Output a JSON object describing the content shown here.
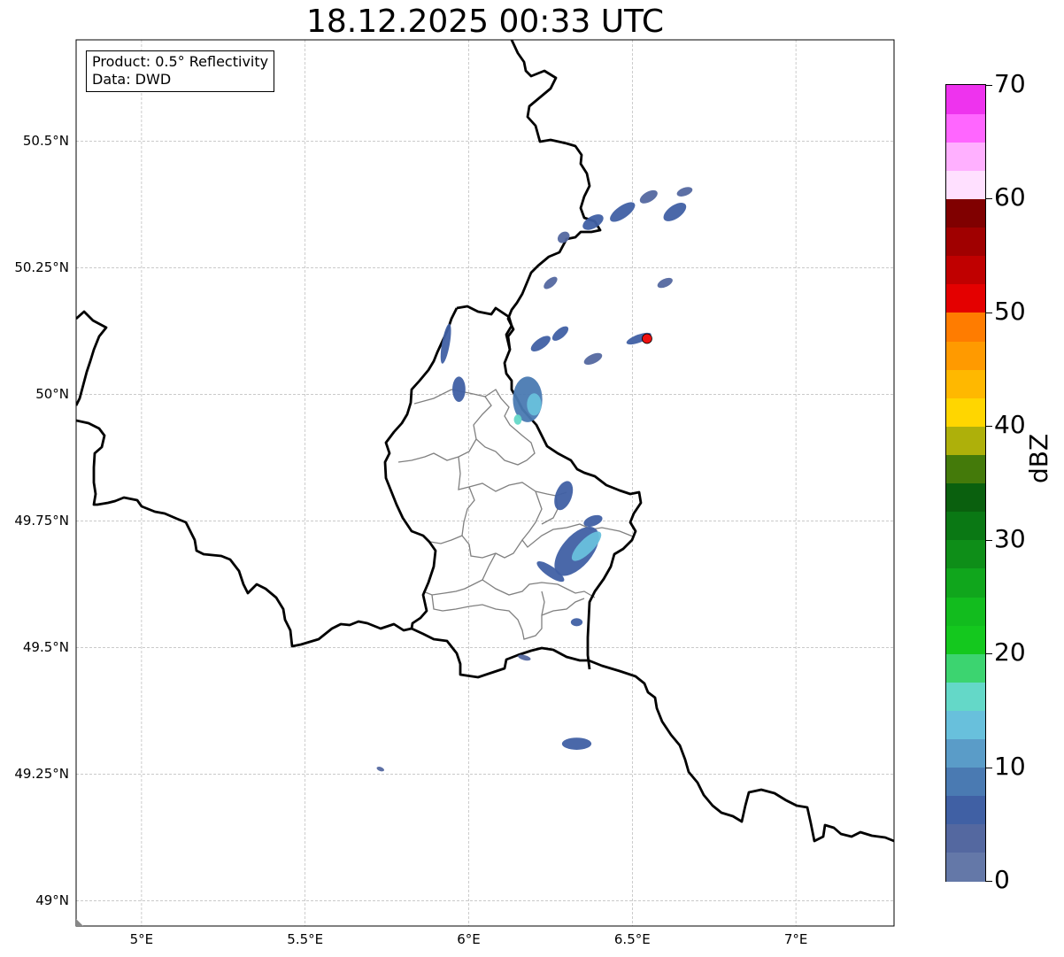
{
  "title": "18.12.2025 00:33 UTC",
  "info_box": {
    "product": "Product: 0.5° Reflectivity",
    "data_source": "Data: DWD"
  },
  "map_extent": {
    "lon": [
      4.8,
      7.3
    ],
    "lat": [
      48.95,
      50.7
    ]
  },
  "lat_ticks": [
    {
      "value": 50.5,
      "label": "50.5°N"
    },
    {
      "value": 50.25,
      "label": "50.25°N"
    },
    {
      "value": 50.0,
      "label": "50°N"
    },
    {
      "value": 49.75,
      "label": "49.75°N"
    },
    {
      "value": 49.5,
      "label": "49.5°N"
    },
    {
      "value": 49.25,
      "label": "49.25°N"
    },
    {
      "value": 49.0,
      "label": "49°N"
    }
  ],
  "lon_ticks": [
    {
      "value": 5.0,
      "label": "5°E"
    },
    {
      "value": 5.5,
      "label": "5.5°E"
    },
    {
      "value": 6.0,
      "label": "6°E"
    },
    {
      "value": 6.5,
      "label": "6.5°E"
    },
    {
      "value": 7.0,
      "label": "7°E"
    }
  ],
  "marker": {
    "lon": 6.545,
    "lat": 50.11,
    "color": "#ee1111"
  },
  "colorbar": {
    "label": "dBZ",
    "min": 0,
    "max": 70,
    "ticks": [
      "0",
      "10",
      "20",
      "30",
      "40",
      "50",
      "60",
      "70"
    ],
    "colors": [
      "#6478a8",
      "#5468a0",
      "#4060a4",
      "#4a7ab2",
      "#5a9cc8",
      "#68c0dc",
      "#64d8c8",
      "#3cd470",
      "#14c81e",
      "#12bc1e",
      "#10a61c",
      "#0e8e18",
      "#0a7814",
      "#0a600e",
      "#447a0a",
      "#aeb00a",
      "#ffd600",
      "#ffb800",
      "#ff9a00",
      "#ff7c00",
      "#e40000",
      "#c00000",
      "#a00000",
      "#800000",
      "#ffe0ff",
      "#ffb0ff",
      "#ff66ff",
      "#ee33ee"
    ]
  },
  "radar_echoes": [
    {
      "name": "echo-north-1",
      "lon": 6.38,
      "lat": 50.34,
      "rx": 0.035,
      "ry": 0.012,
      "rot": -30,
      "dbz": 6
    },
    {
      "name": "echo-north-2",
      "lon": 6.47,
      "lat": 50.36,
      "rx": 0.045,
      "ry": 0.012,
      "rot": -35,
      "dbz": 5
    },
    {
      "name": "echo-north-3",
      "lon": 6.55,
      "lat": 50.39,
      "rx": 0.03,
      "ry": 0.01,
      "rot": -30,
      "dbz": 4
    },
    {
      "name": "echo-north-4",
      "lon": 6.63,
      "lat": 50.36,
      "rx": 0.04,
      "ry": 0.013,
      "rot": -35,
      "dbz": 6
    },
    {
      "name": "echo-north-5",
      "lon": 6.66,
      "lat": 50.4,
      "rx": 0.025,
      "ry": 0.008,
      "rot": -20,
      "dbz": 4
    },
    {
      "name": "echo-north-6",
      "lon": 6.29,
      "lat": 50.31,
      "rx": 0.02,
      "ry": 0.01,
      "rot": -40,
      "dbz": 4
    },
    {
      "name": "echo-center-1",
      "lon": 6.25,
      "lat": 50.22,
      "rx": 0.025,
      "ry": 0.008,
      "rot": -40,
      "dbz": 4
    },
    {
      "name": "echo-center-2",
      "lon": 6.22,
      "lat": 50.1,
      "rx": 0.035,
      "ry": 0.01,
      "rot": -35,
      "dbz": 6
    },
    {
      "name": "echo-center-3",
      "lon": 6.28,
      "lat": 50.12,
      "rx": 0.03,
      "ry": 0.009,
      "rot": -40,
      "dbz": 5
    },
    {
      "name": "echo-east-1",
      "lon": 6.38,
      "lat": 50.07,
      "rx": 0.03,
      "ry": 0.009,
      "rot": -25,
      "dbz": 4
    },
    {
      "name": "echo-east-2",
      "lon": 6.52,
      "lat": 50.11,
      "rx": 0.04,
      "ry": 0.008,
      "rot": -20,
      "dbz": 5
    },
    {
      "name": "echo-east-3",
      "lon": 6.6,
      "lat": 50.22,
      "rx": 0.025,
      "ry": 0.008,
      "rot": -25,
      "dbz": 4
    },
    {
      "name": "echo-cell-1",
      "lon": 6.18,
      "lat": 49.99,
      "rx": 0.045,
      "ry": 0.045,
      "rot": 0,
      "dbz": 8
    },
    {
      "name": "echo-cell-2",
      "lon": 6.2,
      "lat": 49.98,
      "rx": 0.022,
      "ry": 0.022,
      "rot": 0,
      "dbz": 14
    },
    {
      "name": "echo-cell-3",
      "lon": 6.15,
      "lat": 49.95,
      "rx": 0.012,
      "ry": 0.01,
      "rot": 0,
      "dbz": 16
    },
    {
      "name": "echo-west-1",
      "lon": 5.93,
      "lat": 50.1,
      "rx": 0.012,
      "ry": 0.04,
      "rot": 10,
      "dbz": 5
    },
    {
      "name": "echo-west-2",
      "lon": 5.97,
      "lat": 50.01,
      "rx": 0.02,
      "ry": 0.025,
      "rot": 0,
      "dbz": 6
    },
    {
      "name": "echo-south-1",
      "lon": 6.29,
      "lat": 49.8,
      "rx": 0.025,
      "ry": 0.03,
      "rot": 20,
      "dbz": 5
    },
    {
      "name": "echo-south-2",
      "lon": 6.33,
      "lat": 49.69,
      "rx": 0.09,
      "ry": 0.03,
      "rot": -50,
      "dbz": 7
    },
    {
      "name": "echo-south-3",
      "lon": 6.36,
      "lat": 49.7,
      "rx": 0.06,
      "ry": 0.014,
      "rot": -45,
      "dbz": 14
    },
    {
      "name": "echo-south-4",
      "lon": 6.25,
      "lat": 49.65,
      "rx": 0.05,
      "ry": 0.01,
      "rot": 35,
      "dbz": 5
    },
    {
      "name": "echo-south-5",
      "lon": 6.38,
      "lat": 49.75,
      "rx": 0.03,
      "ry": 0.01,
      "rot": -20,
      "dbz": 6
    },
    {
      "name": "echo-south-6",
      "lon": 6.33,
      "lat": 49.55,
      "rx": 0.018,
      "ry": 0.008,
      "rot": 0,
      "dbz": 5
    },
    {
      "name": "echo-far-south-1",
      "lon": 6.33,
      "lat": 49.31,
      "rx": 0.045,
      "ry": 0.012,
      "rot": 0,
      "dbz": 5
    },
    {
      "name": "echo-far-south-2",
      "lon": 6.17,
      "lat": 49.48,
      "rx": 0.02,
      "ry": 0.005,
      "rot": 15,
      "dbz": 4
    },
    {
      "name": "echo-far-southwest",
      "lon": 5.73,
      "lat": 49.26,
      "rx": 0.012,
      "ry": 0.004,
      "rot": 20,
      "dbz": 4
    }
  ]
}
